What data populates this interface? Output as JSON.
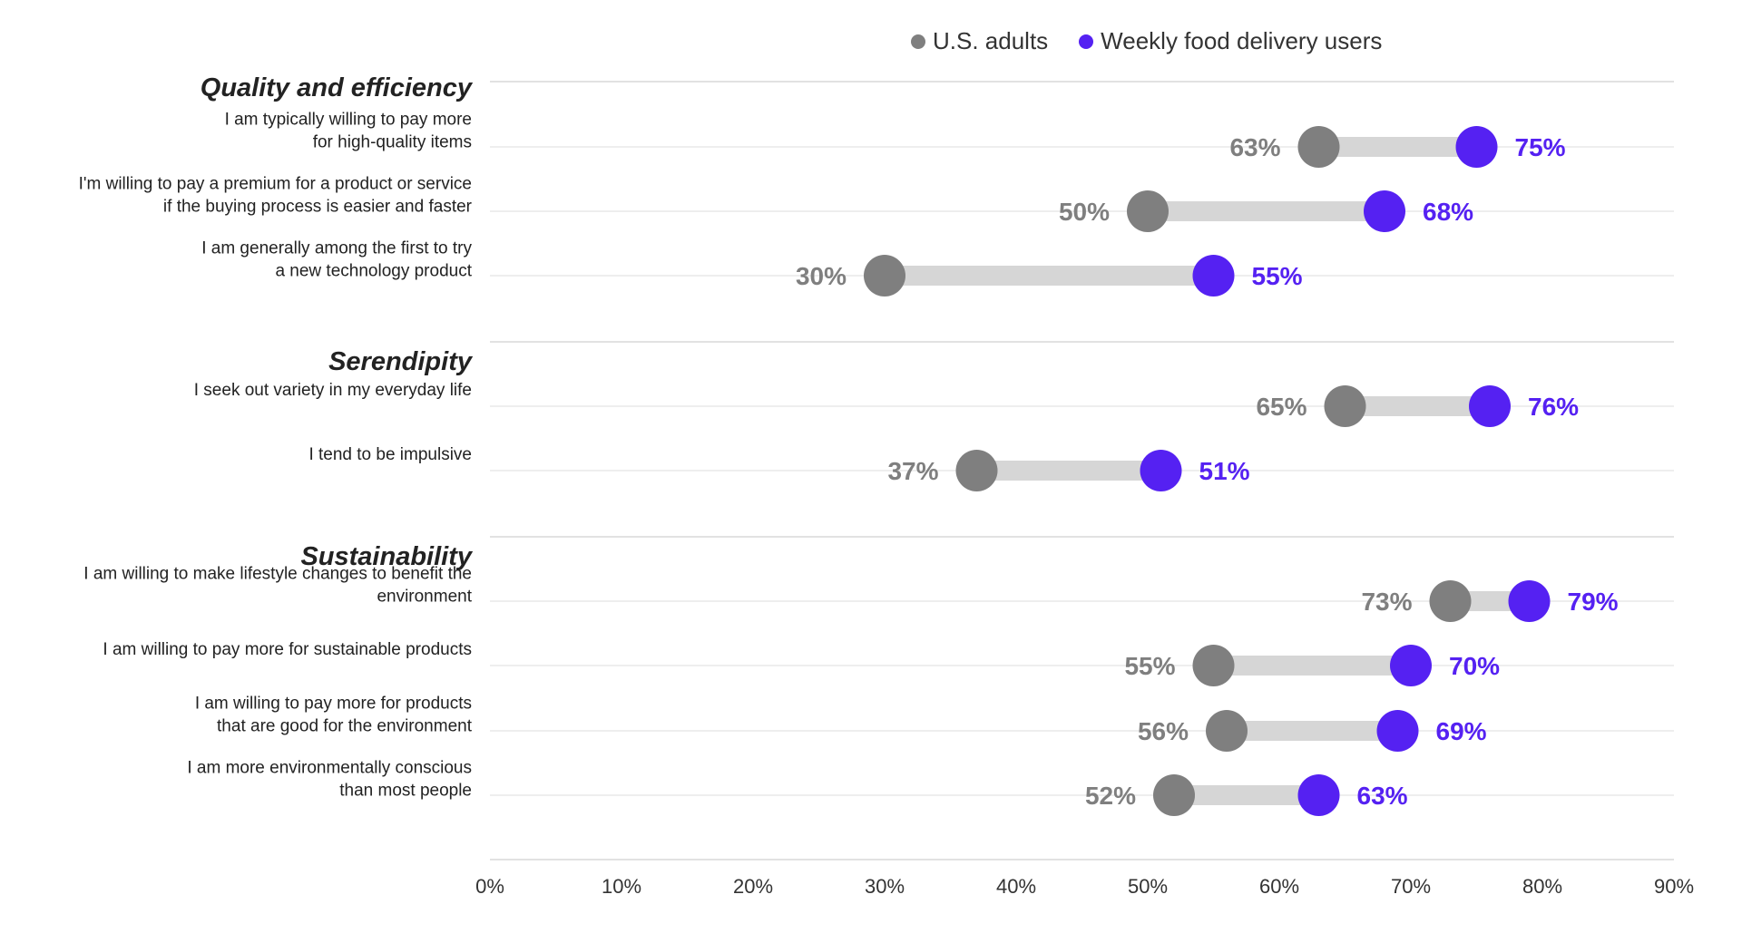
{
  "chart_data": {
    "type": "dumbbell",
    "xlim": [
      0,
      90
    ],
    "x_ticks": [
      "0%",
      "10%",
      "20%",
      "30%",
      "40%",
      "50%",
      "60%",
      "70%",
      "80%",
      "90%"
    ],
    "grid": true,
    "legend_position": "top-center",
    "series": [
      {
        "name": "U.S. adults",
        "color": "#7f7f7f"
      },
      {
        "name": "Weekly food delivery users",
        "color": "#5521f2"
      }
    ],
    "groups": [
      {
        "title": "Quality and efficiency",
        "items": [
          {
            "label": [
              "I am typically willing to pay more",
              "for high-quality items"
            ],
            "us_adults": 63,
            "weekly_users": 75
          },
          {
            "label": [
              "I'm willing to pay a premium for a product or service",
              "if the buying process is easier and faster"
            ],
            "us_adults": 50,
            "weekly_users": 68
          },
          {
            "label": [
              "I am generally among the first to try",
              "a new technology product"
            ],
            "us_adults": 30,
            "weekly_users": 55
          }
        ]
      },
      {
        "title": "Serendipity",
        "items": [
          {
            "label": [
              "I seek out variety in my everyday life"
            ],
            "us_adults": 65,
            "weekly_users": 76
          },
          {
            "label": [
              "I tend to be impulsive"
            ],
            "us_adults": 37,
            "weekly_users": 51
          }
        ]
      },
      {
        "title": "Sustainability",
        "items": [
          {
            "label": [
              "I am willing to make lifestyle changes to benefit the",
              "environment"
            ],
            "us_adults": 73,
            "weekly_users": 79
          },
          {
            "label": [
              "I am willing to pay more for sustainable products"
            ],
            "us_adults": 55,
            "weekly_users": 70
          },
          {
            "label": [
              "I am willing to pay more for products",
              "that are good for the environment"
            ],
            "us_adults": 56,
            "weekly_users": 69
          },
          {
            "label": [
              "I am more environmentally conscious",
              "than most people"
            ],
            "us_adults": 52,
            "weekly_users": 63
          }
        ]
      }
    ],
    "value_suffix": "%"
  }
}
